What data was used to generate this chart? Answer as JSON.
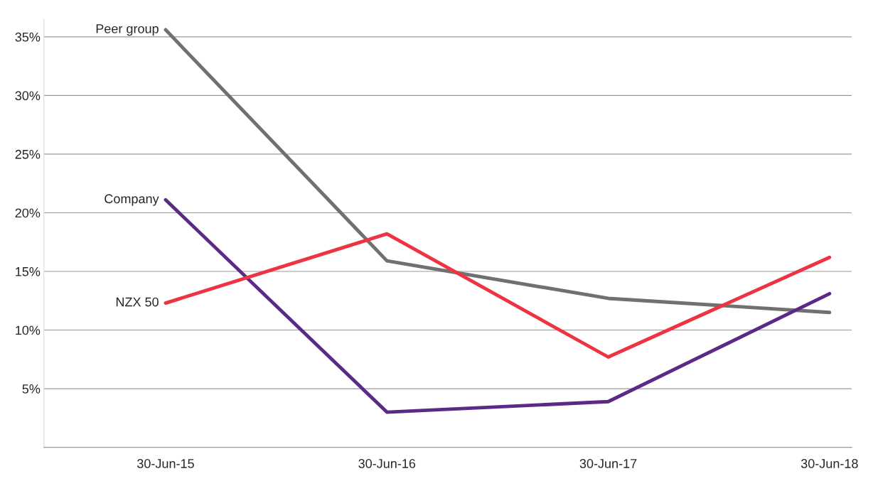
{
  "chart_data": {
    "type": "line",
    "categories": [
      "30-Jun-15",
      "30-Jun-16",
      "30-Jun-17",
      "30-Jun-18"
    ],
    "series": [
      {
        "name": "Peer group",
        "color": "#707070",
        "values": [
          35.6,
          15.9,
          12.7,
          11.5
        ]
      },
      {
        "name": "Company",
        "color": "#5b2a86",
        "values": [
          21.1,
          3.0,
          3.9,
          13.1
        ]
      },
      {
        "name": "NZX 50",
        "color": "#ee3342",
        "values": [
          12.3,
          18.2,
          7.7,
          16.2
        ]
      }
    ],
    "ylim": [
      0,
      36.5
    ],
    "yticks": [
      {
        "value": 5,
        "label": "5%"
      },
      {
        "value": 10,
        "label": "10%"
      },
      {
        "value": 15,
        "label": "15%"
      },
      {
        "value": 20,
        "label": "20%"
      },
      {
        "value": 25,
        "label": "25%"
      },
      {
        "value": 30,
        "label": "30%"
      },
      {
        "value": 35,
        "label": "35%"
      }
    ],
    "grid": "y",
    "legend": false,
    "marker": "none",
    "line_style": "solid"
  }
}
